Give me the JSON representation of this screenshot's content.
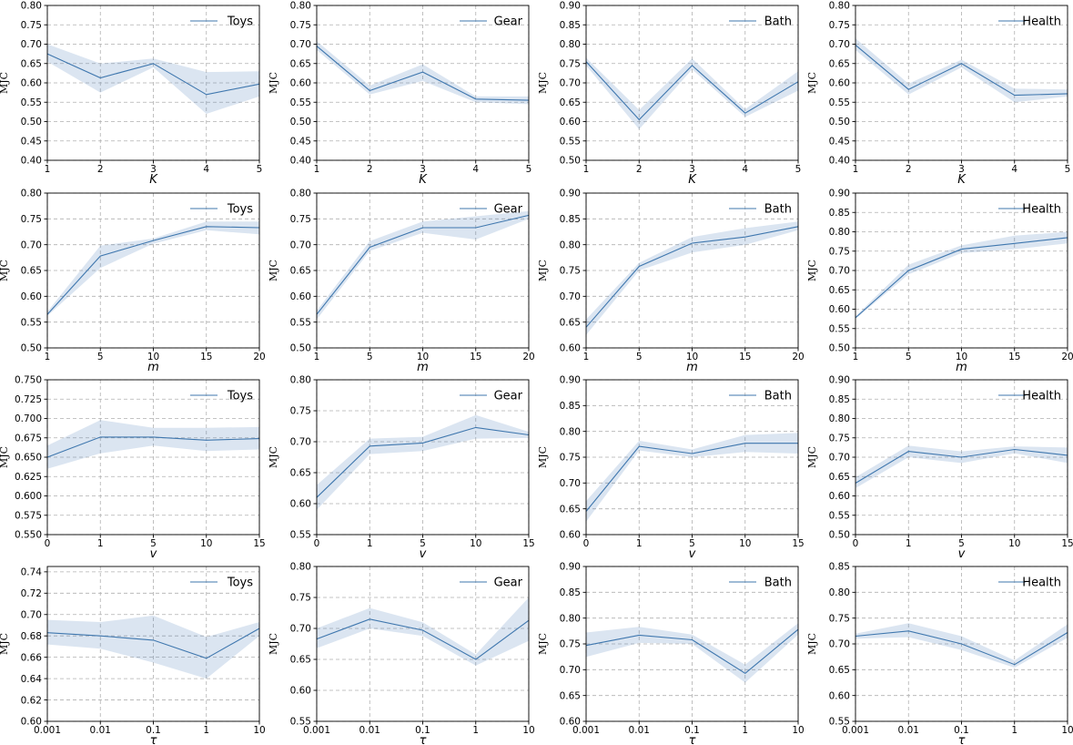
{
  "chart_data": [
    {
      "type": "line",
      "row": 0,
      "col": 0,
      "xlabel": "K",
      "ylabel": "MJC",
      "categories": [
        "1",
        "2",
        "3",
        "4",
        "5"
      ],
      "ylim": [
        0.4,
        0.8
      ],
      "yticks": [
        "0.40",
        "0.45",
        "0.50",
        "0.55",
        "0.60",
        "0.65",
        "0.70",
        "0.75",
        "0.80"
      ],
      "series": [
        {
          "name": "Toys",
          "values": [
            0.675,
            0.613,
            0.65,
            0.57,
            0.597
          ],
          "lower": [
            0.655,
            0.575,
            0.64,
            0.52,
            0.565
          ],
          "upper": [
            0.7,
            0.65,
            0.663,
            0.628,
            0.63
          ]
        }
      ]
    },
    {
      "type": "line",
      "row": 0,
      "col": 1,
      "xlabel": "K",
      "ylabel": "MJC",
      "categories": [
        "1",
        "2",
        "3",
        "4",
        "5"
      ],
      "ylim": [
        0.4,
        0.8
      ],
      "yticks": [
        "0.40",
        "0.45",
        "0.50",
        "0.55",
        "0.60",
        "0.65",
        "0.70",
        "0.75",
        "0.80"
      ],
      "series": [
        {
          "name": "Gear",
          "values": [
            0.695,
            0.58,
            0.628,
            0.558,
            0.555
          ],
          "lower": [
            0.685,
            0.57,
            0.605,
            0.55,
            0.545
          ],
          "upper": [
            0.708,
            0.593,
            0.648,
            0.565,
            0.565
          ]
        }
      ]
    },
    {
      "type": "line",
      "row": 0,
      "col": 2,
      "xlabel": "K",
      "ylabel": "MJC",
      "categories": [
        "1",
        "2",
        "3",
        "4",
        "5"
      ],
      "ylim": [
        0.5,
        0.9
      ],
      "yticks": [
        "0.50",
        "0.55",
        "0.60",
        "0.65",
        "0.70",
        "0.75",
        "0.80",
        "0.85",
        "0.90"
      ],
      "series": [
        {
          "name": "Bath",
          "values": [
            0.755,
            0.605,
            0.745,
            0.622,
            0.703
          ],
          "lower": [
            0.745,
            0.58,
            0.735,
            0.612,
            0.68
          ],
          "upper": [
            0.765,
            0.63,
            0.763,
            0.632,
            0.73
          ]
        }
      ]
    },
    {
      "type": "line",
      "row": 0,
      "col": 3,
      "xlabel": "K",
      "ylabel": "MJC",
      "categories": [
        "1",
        "2",
        "3",
        "4",
        "5"
      ],
      "ylim": [
        0.4,
        0.8
      ],
      "yticks": [
        "0.40",
        "0.45",
        "0.50",
        "0.55",
        "0.60",
        "0.65",
        "0.70",
        "0.75",
        "0.80"
      ],
      "series": [
        {
          "name": "Health",
          "values": [
            0.698,
            0.583,
            0.65,
            0.568,
            0.572
          ],
          "lower": [
            0.685,
            0.57,
            0.64,
            0.55,
            0.565
          ],
          "upper": [
            0.715,
            0.598,
            0.66,
            0.585,
            0.583
          ]
        }
      ]
    },
    {
      "type": "line",
      "row": 1,
      "col": 0,
      "xlabel": "m",
      "ylabel": "MJC",
      "categories": [
        "1",
        "5",
        "10",
        "15",
        "20"
      ],
      "ylim": [
        0.5,
        0.8
      ],
      "yticks": [
        "0.50",
        "0.55",
        "0.60",
        "0.65",
        "0.70",
        "0.75",
        "0.80"
      ],
      "series": [
        {
          "name": "Toys",
          "values": [
            0.565,
            0.678,
            0.708,
            0.735,
            0.733
          ],
          "lower": [
            0.562,
            0.655,
            0.702,
            0.728,
            0.72
          ],
          "upper": [
            0.57,
            0.698,
            0.712,
            0.745,
            0.745
          ]
        }
      ]
    },
    {
      "type": "line",
      "row": 1,
      "col": 1,
      "xlabel": "m",
      "ylabel": "MJC",
      "categories": [
        "1",
        "5",
        "10",
        "15",
        "20"
      ],
      "ylim": [
        0.5,
        0.8
      ],
      "yticks": [
        "0.50",
        "0.55",
        "0.60",
        "0.65",
        "0.70",
        "0.75",
        "0.80"
      ],
      "series": [
        {
          "name": "Gear",
          "values": [
            0.565,
            0.695,
            0.733,
            0.733,
            0.757
          ],
          "lower": [
            0.555,
            0.688,
            0.723,
            0.71,
            0.75
          ],
          "upper": [
            0.572,
            0.707,
            0.745,
            0.755,
            0.765
          ]
        }
      ]
    },
    {
      "type": "line",
      "row": 1,
      "col": 2,
      "xlabel": "m",
      "ylabel": "MJC",
      "categories": [
        "1",
        "5",
        "10",
        "15",
        "20"
      ],
      "ylim": [
        0.6,
        0.9
      ],
      "yticks": [
        "0.60",
        "0.65",
        "0.70",
        "0.75",
        "0.80",
        "0.85",
        "0.90"
      ],
      "series": [
        {
          "name": "Bath",
          "values": [
            0.64,
            0.758,
            0.803,
            0.815,
            0.835
          ],
          "lower": [
            0.625,
            0.75,
            0.785,
            0.8,
            0.828
          ],
          "upper": [
            0.655,
            0.765,
            0.815,
            0.832,
            0.845
          ]
        }
      ]
    },
    {
      "type": "line",
      "row": 1,
      "col": 3,
      "xlabel": "m",
      "ylabel": "MJC",
      "categories": [
        "1",
        "5",
        "10",
        "15",
        "20"
      ],
      "ylim": [
        0.5,
        0.9
      ],
      "yticks": [
        "0.50",
        "0.55",
        "0.60",
        "0.65",
        "0.70",
        "0.75",
        "0.80",
        "0.85",
        "0.90"
      ],
      "series": [
        {
          "name": "Health",
          "values": [
            0.578,
            0.7,
            0.755,
            0.77,
            0.785
          ],
          "lower": [
            0.575,
            0.69,
            0.745,
            0.755,
            0.77
          ],
          "upper": [
            0.582,
            0.715,
            0.765,
            0.79,
            0.8
          ]
        }
      ]
    },
    {
      "type": "line",
      "row": 2,
      "col": 0,
      "xlabel": "v",
      "ylabel": "MJC",
      "categories": [
        "0",
        "1",
        "5",
        "10",
        "15"
      ],
      "ylim": [
        0.55,
        0.75
      ],
      "yticks": [
        "0.550",
        "0.575",
        "0.600",
        "0.625",
        "0.650",
        "0.675",
        "0.700",
        "0.725",
        "0.750"
      ],
      "series": [
        {
          "name": "Toys",
          "values": [
            0.65,
            0.676,
            0.676,
            0.672,
            0.674
          ],
          "lower": [
            0.635,
            0.655,
            0.665,
            0.658,
            0.66
          ],
          "upper": [
            0.665,
            0.698,
            0.688,
            0.688,
            0.689
          ]
        }
      ]
    },
    {
      "type": "line",
      "row": 2,
      "col": 1,
      "xlabel": "v",
      "ylabel": "MJC",
      "categories": [
        "0",
        "1",
        "5",
        "10",
        "15"
      ],
      "ylim": [
        0.55,
        0.8
      ],
      "yticks": [
        "0.55",
        "0.60",
        "0.65",
        "0.70",
        "0.75",
        "0.80"
      ],
      "series": [
        {
          "name": "Gear",
          "values": [
            0.61,
            0.693,
            0.698,
            0.723,
            0.711
          ],
          "lower": [
            0.59,
            0.68,
            0.685,
            0.705,
            0.706
          ],
          "upper": [
            0.63,
            0.705,
            0.708,
            0.743,
            0.716
          ]
        }
      ]
    },
    {
      "type": "line",
      "row": 2,
      "col": 2,
      "xlabel": "v",
      "ylabel": "MJC",
      "categories": [
        "0",
        "1",
        "5",
        "10",
        "15"
      ],
      "ylim": [
        0.6,
        0.9
      ],
      "yticks": [
        "0.60",
        "0.65",
        "0.70",
        "0.75",
        "0.80",
        "0.85",
        "0.90"
      ],
      "series": [
        {
          "name": "Bath",
          "values": [
            0.645,
            0.771,
            0.757,
            0.777,
            0.777
          ],
          "lower": [
            0.625,
            0.763,
            0.75,
            0.76,
            0.757
          ],
          "upper": [
            0.665,
            0.782,
            0.765,
            0.793,
            0.797
          ]
        }
      ]
    },
    {
      "type": "line",
      "row": 2,
      "col": 3,
      "xlabel": "v",
      "ylabel": "MJC",
      "categories": [
        "0",
        "1",
        "5",
        "10",
        "15"
      ],
      "ylim": [
        0.5,
        0.9
      ],
      "yticks": [
        "0.50",
        "0.55",
        "0.60",
        "0.65",
        "0.70",
        "0.75",
        "0.80",
        "0.85",
        "0.90"
      ],
      "series": [
        {
          "name": "Health",
          "values": [
            0.633,
            0.715,
            0.7,
            0.72,
            0.705
          ],
          "lower": [
            0.62,
            0.7,
            0.685,
            0.71,
            0.685
          ],
          "upper": [
            0.648,
            0.73,
            0.715,
            0.728,
            0.725
          ]
        }
      ]
    },
    {
      "type": "line",
      "row": 3,
      "col": 0,
      "xlabel": "τ",
      "ylabel": "MJC",
      "categories": [
        "0.001",
        "0.01",
        "0.1",
        "1",
        "10"
      ],
      "ylim": [
        0.6,
        0.745
      ],
      "yticks": [
        "0.60",
        "0.62",
        "0.64",
        "0.66",
        "0.68",
        "0.70",
        "0.72",
        "0.74"
      ],
      "series": [
        {
          "name": "Toys",
          "values": [
            0.683,
            0.68,
            0.676,
            0.659,
            0.687
          ],
          "lower": [
            0.672,
            0.668,
            0.655,
            0.64,
            0.68
          ],
          "upper": [
            0.695,
            0.693,
            0.699,
            0.679,
            0.693
          ]
        }
      ]
    },
    {
      "type": "line",
      "row": 3,
      "col": 1,
      "xlabel": "τ",
      "ylabel": "MJC",
      "categories": [
        "0.001",
        "0.01",
        "0.1",
        "1",
        "10"
      ],
      "ylim": [
        0.55,
        0.8
      ],
      "yticks": [
        "0.55",
        "0.60",
        "0.65",
        "0.70",
        "0.75",
        "0.80"
      ],
      "series": [
        {
          "name": "Gear",
          "values": [
            0.683,
            0.715,
            0.697,
            0.65,
            0.713
          ],
          "lower": [
            0.668,
            0.7,
            0.688,
            0.64,
            0.68
          ],
          "upper": [
            0.7,
            0.733,
            0.71,
            0.658,
            0.75
          ]
        }
      ]
    },
    {
      "type": "line",
      "row": 3,
      "col": 2,
      "xlabel": "τ",
      "ylabel": "MJC",
      "categories": [
        "0.001",
        "0.01",
        "0.1",
        "1",
        "10"
      ],
      "ylim": [
        0.6,
        0.9
      ],
      "yticks": [
        "0.60",
        "0.65",
        "0.70",
        "0.75",
        "0.80",
        "0.85",
        "0.90"
      ],
      "series": [
        {
          "name": "Bath",
          "values": [
            0.747,
            0.767,
            0.758,
            0.693,
            0.778
          ],
          "lower": [
            0.725,
            0.752,
            0.75,
            0.675,
            0.768
          ],
          "upper": [
            0.772,
            0.783,
            0.768,
            0.71,
            0.79
          ]
        }
      ]
    },
    {
      "type": "line",
      "row": 3,
      "col": 3,
      "xlabel": "τ",
      "ylabel": "MJC",
      "categories": [
        "0.001",
        "0.01",
        "0.1",
        "1",
        "10"
      ],
      "ylim": [
        0.55,
        0.85
      ],
      "yticks": [
        "0.55",
        "0.60",
        "0.65",
        "0.70",
        "0.75",
        "0.80",
        "0.85"
      ],
      "series": [
        {
          "name": "Health",
          "values": [
            0.715,
            0.725,
            0.7,
            0.66,
            0.722
          ],
          "lower": [
            0.71,
            0.713,
            0.688,
            0.654,
            0.712
          ],
          "upper": [
            0.72,
            0.74,
            0.715,
            0.668,
            0.738
          ]
        }
      ]
    }
  ]
}
